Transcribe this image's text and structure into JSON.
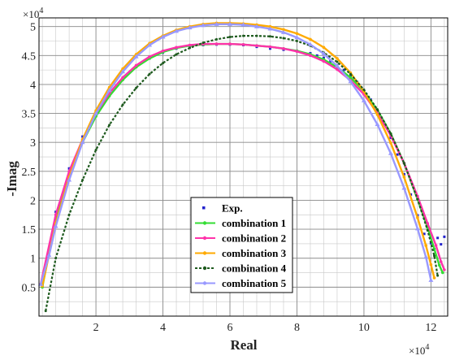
{
  "chart_data": {
    "type": "scatter",
    "xlabel": "Real",
    "ylabel": "-Imag",
    "x_exponent_label": "×10",
    "x_exponent_power": "4",
    "y_exponent_label": "×10",
    "y_exponent_power": "4",
    "xlim": [
      3000,
      125000
    ],
    "ylim": [
      0,
      51500
    ],
    "x_ticks": [
      20000,
      40000,
      60000,
      80000,
      100000,
      120000
    ],
    "x_tick_labels": [
      "2",
      "4",
      "6",
      "8",
      "10",
      "12"
    ],
    "y_ticks": [
      5000,
      10000,
      15000,
      20000,
      25000,
      30000,
      35000,
      40000,
      45000,
      50000
    ],
    "y_tick_labels": [
      "0.5",
      "1",
      "1.5",
      "2",
      "2.5",
      "3",
      "3.5",
      "4",
      "4.5",
      "5"
    ],
    "grid": true,
    "minor_grid": true,
    "legend_position": "bottom-center",
    "series": [
      {
        "name": "Exp.",
        "color": "#2222cc",
        "style": "dots",
        "x": [
          4000,
          8000,
          12000,
          16000,
          20000,
          24000,
          28000,
          32000,
          36000,
          40000,
          44000,
          48000,
          52000,
          56000,
          60000,
          64000,
          68000,
          72000,
          76000,
          80000,
          84000,
          86000,
          88000,
          90000,
          92000,
          94000,
          96000,
          98000,
          100000,
          102000,
          104000,
          106000,
          108000,
          110000,
          112000,
          114000,
          116000,
          118000,
          120000,
          122000,
          123000,
          124000
        ],
        "y": [
          5800,
          18000,
          25500,
          31000,
          35200,
          38600,
          41100,
          43000,
          44500,
          45500,
          46200,
          46600,
          46800,
          46900,
          46900,
          46800,
          46500,
          46200,
          46000,
          45800,
          45400,
          45000,
          44600,
          44000,
          43300,
          42500,
          41500,
          40400,
          39000,
          37400,
          35600,
          33400,
          30800,
          27900,
          24500,
          21000,
          17400,
          14200,
          12600,
          13500,
          12400,
          13700
        ]
      },
      {
        "name": "combination 1",
        "color": "#33dd33",
        "style": "line-marker",
        "x": [
          4000,
          8000,
          12000,
          16000,
          20000,
          24000,
          28000,
          32000,
          36000,
          40000,
          44000,
          48000,
          52000,
          56000,
          60000,
          64000,
          68000,
          72000,
          76000,
          80000,
          84000,
          88000,
          92000,
          96000,
          100000,
          104000,
          108000,
          112000,
          116000,
          119000,
          121000,
          122500,
          123500
        ],
        "y": [
          5000,
          17000,
          24500,
          30000,
          34500,
          38000,
          40800,
          43000,
          44500,
          45600,
          46300,
          46700,
          46900,
          47000,
          47000,
          46900,
          46700,
          46500,
          46200,
          45800,
          45200,
          44300,
          43000,
          41200,
          38800,
          35600,
          31500,
          26400,
          20200,
          15300,
          11600,
          8800,
          7500
        ]
      },
      {
        "name": "combination 2",
        "color": "#ff33aa",
        "style": "line-marker",
        "x": [
          3500,
          8000,
          12000,
          16000,
          20000,
          24000,
          28000,
          32000,
          36000,
          40000,
          44000,
          48000,
          52000,
          56000,
          60000,
          64000,
          68000,
          72000,
          76000,
          80000,
          84000,
          88000,
          92000,
          96000,
          100000,
          104000,
          108000,
          112000,
          116000,
          119000,
          121500,
          123000,
          124000
        ],
        "y": [
          5500,
          17500,
          25000,
          30500,
          35000,
          38500,
          41200,
          43300,
          44800,
          45800,
          46400,
          46800,
          47000,
          47000,
          47000,
          46900,
          46700,
          46500,
          46200,
          45700,
          45000,
          44000,
          42600,
          40700,
          38300,
          35100,
          31200,
          26400,
          20700,
          16000,
          12200,
          9400,
          8000
        ]
      },
      {
        "name": "combination 3",
        "color": "#ffaa00",
        "style": "line-marker",
        "x": [
          4000,
          8000,
          12000,
          16000,
          20000,
          24000,
          28000,
          32000,
          36000,
          40000,
          44000,
          48000,
          52000,
          56000,
          60000,
          64000,
          68000,
          72000,
          76000,
          80000,
          84000,
          88000,
          92000,
          96000,
          100000,
          104000,
          108000,
          112000,
          116000,
          118500,
          120000,
          121000
        ],
        "y": [
          5200,
          16000,
          24000,
          30500,
          35500,
          39500,
          42700,
          45200,
          47100,
          48400,
          49400,
          50000,
          50400,
          50600,
          50600,
          50500,
          50300,
          50000,
          49500,
          48800,
          47800,
          46400,
          44500,
          42000,
          38800,
          34800,
          29900,
          24000,
          17000,
          12200,
          8900,
          6600
        ]
      },
      {
        "name": "combination 4",
        "color": "#1e5a1e",
        "style": "dashed",
        "x": [
          5000,
          8000,
          12000,
          16000,
          20000,
          24000,
          28000,
          32000,
          36000,
          40000,
          44000,
          48000,
          52000,
          56000,
          60000,
          64000,
          68000,
          72000,
          76000,
          80000,
          84000,
          88000,
          92000,
          96000,
          100000,
          104000,
          108000,
          112000,
          116000,
          119000,
          121000,
          122000
        ],
        "y": [
          900,
          10000,
          17500,
          23500,
          28700,
          33000,
          36500,
          39400,
          41800,
          43700,
          45200,
          46300,
          47200,
          47800,
          48200,
          48400,
          48400,
          48300,
          48000,
          47500,
          46700,
          45500,
          43900,
          41800,
          39100,
          35700,
          31500,
          26400,
          20200,
          14800,
          10400,
          7000
        ]
      },
      {
        "name": "combination 5",
        "color": "#9999ff",
        "style": "line-marker",
        "x": [
          3500,
          6000,
          8000,
          12000,
          16000,
          20000,
          24000,
          28000,
          32000,
          36000,
          40000,
          44000,
          48000,
          52000,
          56000,
          60000,
          64000,
          68000,
          72000,
          76000,
          80000,
          84000,
          88000,
          92000,
          96000,
          100000,
          104000,
          108000,
          112000,
          116000,
          118500,
          120000
        ],
        "y": [
          5500,
          10500,
          15500,
          23500,
          30000,
          35000,
          39000,
          42200,
          44800,
          46800,
          48200,
          49200,
          49800,
          50200,
          50400,
          50400,
          50300,
          50000,
          49600,
          49000,
          48100,
          46900,
          45300,
          43200,
          40500,
          37200,
          33100,
          28100,
          22100,
          15100,
          10200,
          6200
        ]
      }
    ]
  }
}
